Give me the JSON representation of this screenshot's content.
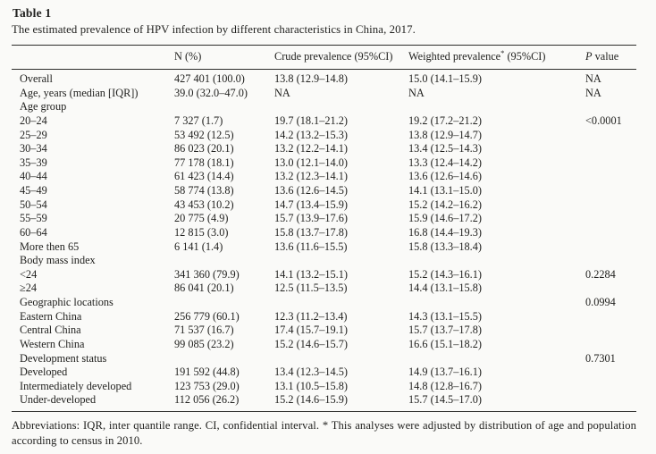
{
  "table": {
    "label": "Table 1",
    "caption": "The estimated prevalence of HPV infection by different characteristics in China, 2017.",
    "header": {
      "col_label": "",
      "col_n": "N (%)",
      "col_crude": "Crude prevalence (95%CI)",
      "col_weighted_text": "Weighted prevalence",
      "col_weighted_marker": "*",
      "col_weighted_ci": " (95%CI)",
      "col_p_italic": "P",
      "col_p_rest": " value"
    },
    "rows": [
      {
        "label": "Overall",
        "n": "427 401 (100.0)",
        "crude": "13.8 (12.9–14.8)",
        "weighted": "15.0 (14.1–15.9)",
        "p": "NA"
      },
      {
        "label": "Age, years (median [IQR])",
        "n": "39.0 (32.0–47.0)",
        "crude": "NA",
        "weighted": "NA",
        "p": "NA"
      },
      {
        "label": "Age group",
        "n": "",
        "crude": "",
        "weighted": "",
        "p": ""
      },
      {
        "label": "20–24",
        "n": "7 327 (1.7)",
        "crude": "19.7 (18.1–21.2)",
        "weighted": "19.2 (17.2–21.2)",
        "p": "<0.0001"
      },
      {
        "label": "25–29",
        "n": "53 492 (12.5)",
        "crude": "14.2 (13.2–15.3)",
        "weighted": "13.8 (12.9–14.7)",
        "p": ""
      },
      {
        "label": "30–34",
        "n": "86 023 (20.1)",
        "crude": "13.2 (12.2–14.1)",
        "weighted": "13.4 (12.5–14.3)",
        "p": ""
      },
      {
        "label": "35–39",
        "n": "77 178 (18.1)",
        "crude": "13.0 (12.1–14.0)",
        "weighted": "13.3 (12.4–14.2)",
        "p": ""
      },
      {
        "label": "40–44",
        "n": "61 423 (14.4)",
        "crude": "13.2 (12.3–14.1)",
        "weighted": "13.6 (12.6–14.6)",
        "p": ""
      },
      {
        "label": "45–49",
        "n": "58 774 (13.8)",
        "crude": "13.6 (12.6–14.5)",
        "weighted": "14.1 (13.1–15.0)",
        "p": ""
      },
      {
        "label": "50–54",
        "n": "43 453 (10.2)",
        "crude": "14.7 (13.4–15.9)",
        "weighted": "15.2 (14.2–16.2)",
        "p": ""
      },
      {
        "label": "55–59",
        "n": "20 775 (4.9)",
        "crude": "15.7 (13.9–17.6)",
        "weighted": "15.9 (14.6–17.2)",
        "p": ""
      },
      {
        "label": "60–64",
        "n": "12 815 (3.0)",
        "crude": "15.8 (13.7–17.8)",
        "weighted": "16.8 (14.4–19.3)",
        "p": ""
      },
      {
        "label": "More then 65",
        "n": "6 141 (1.4)",
        "crude": "13.6 (11.6–15.5)",
        "weighted": "15.8 (13.3–18.4)",
        "p": ""
      },
      {
        "label": "Body mass index",
        "n": "",
        "crude": "",
        "weighted": "",
        "p": ""
      },
      {
        "label": "<24",
        "n": "341 360 (79.9)",
        "crude": "14.1 (13.2–15.1)",
        "weighted": "15.2 (14.3–16.1)",
        "p": "0.2284"
      },
      {
        "label": "≥24",
        "n": "86 041 (20.1)",
        "crude": "12.5 (11.5–13.5)",
        "weighted": "14.4 (13.1–15.8)",
        "p": ""
      },
      {
        "label": "Geographic locations",
        "n": "",
        "crude": "",
        "weighted": "",
        "p": "0.0994"
      },
      {
        "label": "Eastern China",
        "n": "256 779 (60.1)",
        "crude": "12.3 (11.2–13.4)",
        "weighted": "14.3 (13.1–15.5)",
        "p": ""
      },
      {
        "label": "Central China",
        "n": "71 537 (16.7)",
        "crude": "17.4 (15.7–19.1)",
        "weighted": "15.7 (13.7–17.8)",
        "p": ""
      },
      {
        "label": "Western China",
        "n": "99 085 (23.2)",
        "crude": "15.2 (14.6–15.7)",
        "weighted": "16.6 (15.1–18.2)",
        "p": ""
      },
      {
        "label": "Development status",
        "n": "",
        "crude": "",
        "weighted": "",
        "p": "0.7301"
      },
      {
        "label": "Developed",
        "n": "191 592 (44.8)",
        "crude": "13.4 (12.3–14.5)",
        "weighted": "14.9 (13.7–16.1)",
        "p": ""
      },
      {
        "label": "Intermediately developed",
        "n": "123 753 (29.0)",
        "crude": "13.1 (10.5–15.8)",
        "weighted": "14.8 (12.8–16.7)",
        "p": ""
      },
      {
        "label": "Under-developed",
        "n": "112 056 (26.2)",
        "crude": "15.2 (14.6–15.9)",
        "weighted": "15.7 (14.5–17.0)",
        "p": ""
      }
    ],
    "footnote": "Abbreviations: IQR, inter quantile range. CI, confidential interval. * This analyses were adjusted by distribution of age and population according to census in 2010."
  }
}
